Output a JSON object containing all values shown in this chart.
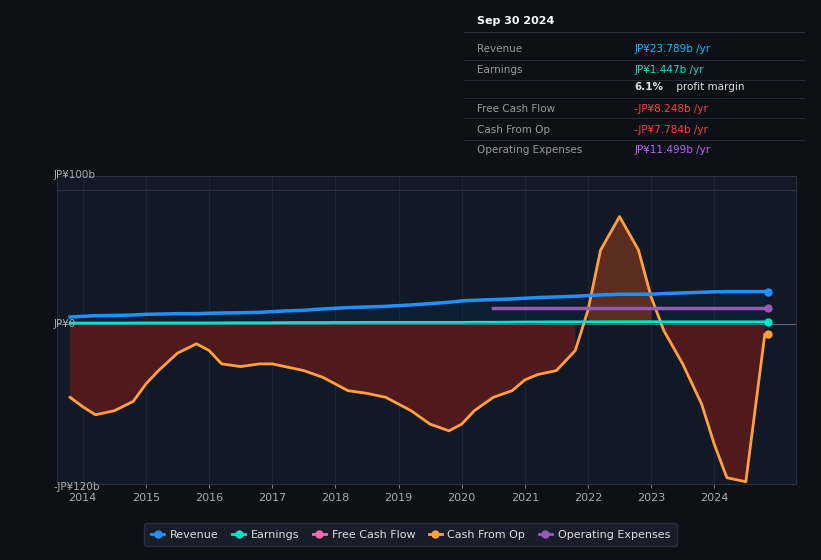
{
  "background_color": "#0d1117",
  "plot_bg_color": "#111927",
  "ylim": [
    -120,
    110
  ],
  "xlim": [
    2013.6,
    2025.3
  ],
  "xticks": [
    2014,
    2015,
    2016,
    2017,
    2018,
    2019,
    2020,
    2021,
    2022,
    2023,
    2024
  ],
  "info_box": {
    "title": "Sep 30 2024",
    "rows": [
      {
        "label": "Revenue",
        "value": "JP¥23.789b /yr",
        "color": "#00bfff"
      },
      {
        "label": "Earnings",
        "value": "JP¥1.447b /yr",
        "color": "#00e5c8"
      },
      {
        "label": "",
        "value": "6.1% profit margin",
        "color": "#ffffff",
        "bold_part": "6.1%"
      },
      {
        "label": "Free Cash Flow",
        "value": "-JP¥8.248b /yr",
        "color": "#ff4040"
      },
      {
        "label": "Cash From Op",
        "value": "-JP¥7.784b /yr",
        "color": "#ff4040"
      },
      {
        "label": "Operating Expenses",
        "value": "JP¥11.499b /yr",
        "color": "#bf5fff"
      }
    ]
  },
  "series": {
    "years": [
      2013.8,
      2014.0,
      2014.2,
      2014.5,
      2014.8,
      2015.0,
      2015.2,
      2015.5,
      2015.8,
      2016.0,
      2016.2,
      2016.5,
      2016.8,
      2017.0,
      2017.2,
      2017.5,
      2017.8,
      2018.0,
      2018.2,
      2018.5,
      2018.8,
      2019.0,
      2019.2,
      2019.5,
      2019.8,
      2020.0,
      2020.2,
      2020.5,
      2020.8,
      2021.0,
      2021.2,
      2021.5,
      2021.8,
      2022.0,
      2022.2,
      2022.5,
      2022.8,
      2023.0,
      2023.2,
      2023.5,
      2023.8,
      2024.0,
      2024.2,
      2024.5,
      2024.8
    ],
    "revenue": [
      5,
      5.5,
      6,
      6.2,
      6.5,
      7,
      7.2,
      7.5,
      7.5,
      7.8,
      8,
      8.2,
      8.5,
      9,
      9.5,
      10,
      11,
      11.5,
      12,
      12.5,
      13,
      13.5,
      14,
      15,
      16,
      17,
      17.5,
      18,
      18.5,
      19,
      19.5,
      20,
      20.5,
      21,
      21.5,
      22,
      22,
      22,
      22.5,
      23,
      23.5,
      23.8,
      24,
      24,
      24
    ],
    "earnings": [
      0.5,
      0.5,
      0.5,
      0.5,
      0.5,
      0.6,
      0.6,
      0.6,
      0.6,
      0.6,
      0.6,
      0.7,
      0.7,
      0.7,
      0.8,
      0.8,
      0.8,
      0.9,
      0.9,
      1.0,
      1.0,
      1.0,
      1.0,
      1.0,
      1.0,
      1.0,
      1.1,
      1.1,
      1.2,
      1.3,
      1.3,
      1.4,
      1.4,
      1.4,
      1.4,
      1.5,
      1.5,
      1.5,
      1.4,
      1.4,
      1.4,
      1.4,
      1.4,
      1.4,
      1.4
    ],
    "cash_from_op": [
      -55,
      -62,
      -68,
      -65,
      -58,
      -45,
      -35,
      -22,
      -15,
      -20,
      -30,
      -32,
      -30,
      -30,
      -32,
      -35,
      -40,
      -45,
      -50,
      -52,
      -55,
      -60,
      -65,
      -75,
      -80,
      -75,
      -65,
      -55,
      -50,
      -42,
      -38,
      -35,
      -20,
      10,
      55,
      80,
      55,
      20,
      -5,
      -30,
      -60,
      -90,
      -115,
      -118,
      -8
    ],
    "free_cash_flow": [
      null,
      null,
      null,
      null,
      null,
      null,
      null,
      null,
      null,
      null,
      null,
      null,
      null,
      null,
      null,
      null,
      null,
      null,
      null,
      null,
      null,
      null,
      null,
      null,
      null,
      null,
      null,
      null,
      null,
      null,
      null,
      null,
      null,
      null,
      null,
      null,
      null,
      null,
      null,
      null,
      null,
      null,
      null,
      null,
      null
    ],
    "op_expenses": [
      null,
      null,
      null,
      null,
      null,
      null,
      null,
      null,
      null,
      null,
      null,
      null,
      null,
      null,
      null,
      null,
      null,
      null,
      null,
      null,
      null,
      null,
      null,
      null,
      null,
      null,
      null,
      11.5,
      11.5,
      11.5,
      11.5,
      11.5,
      11.5,
      11.5,
      11.5,
      11.5,
      11.5,
      11.5,
      11.5,
      11.5,
      11.5,
      11.5,
      11.5,
      11.5,
      11.5
    ]
  },
  "colors": {
    "revenue": "#1e90ff",
    "earnings": "#00e5c8",
    "cash_from_op": "#ffa040",
    "op_expenses": "#9b59b6",
    "fill_revenue_bg": "#0d2035",
    "fill_cfo_neg": "#5c1a1a",
    "fill_cfo_pos": "#6b3020"
  },
  "legend": [
    {
      "label": "Revenue",
      "color": "#1e90ff"
    },
    {
      "label": "Earnings",
      "color": "#00e5c8"
    },
    {
      "label": "Free Cash Flow",
      "color": "#ff69b4"
    },
    {
      "label": "Cash From Op",
      "color": "#ffa040"
    },
    {
      "label": "Operating Expenses",
      "color": "#9b59b6"
    }
  ]
}
